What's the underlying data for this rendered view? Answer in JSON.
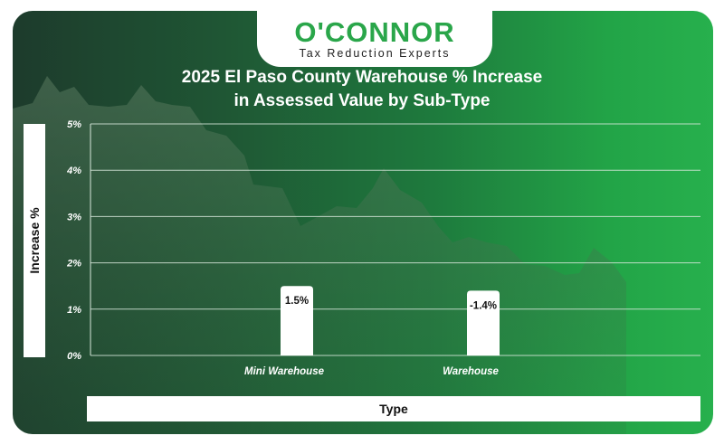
{
  "logo": {
    "brand": "O'CONNOR",
    "tagline": "Tax Reduction Experts"
  },
  "chart_data": {
    "type": "bar",
    "title_line1": "2025 El Paso County Warehouse % Increase",
    "title_line2": "in Assessed Value by Sub-Type",
    "title": "2025 El Paso County Warehouse % Increase in Assessed Value by Sub-Type",
    "xlabel": "Type",
    "ylabel": "Increase %",
    "categories": [
      "Mini Warehouse",
      "Warehouse"
    ],
    "values": [
      1.5,
      -1.4
    ],
    "data_labels": [
      "1.5%",
      "-1.4%"
    ],
    "ylim": [
      0,
      5
    ],
    "yticks": [
      "0%",
      "1%",
      "2%",
      "3%",
      "4%",
      "5%"
    ],
    "grid": true,
    "colors": {
      "bar": "#ffffff",
      "grid": "#d8e8dc",
      "text": "#ffffff"
    }
  }
}
